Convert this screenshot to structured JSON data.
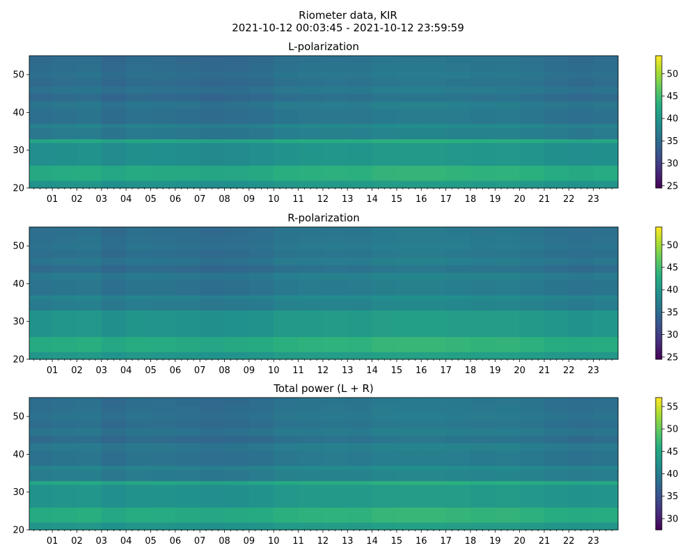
{
  "figure": {
    "title_line1": "Riometer data, KIR",
    "title_line2": "2021-10-12 00:03:45 - 2021-10-12 23:59:59"
  },
  "chart_data": [
    {
      "type": "heatmap",
      "title": "L-polarization",
      "colormap": "viridis",
      "x_range_hours": [
        0.0625,
        24.0
      ],
      "x_tick_labels": [
        "01",
        "02",
        "03",
        "04",
        "05",
        "06",
        "07",
        "08",
        "09",
        "10",
        "11",
        "12",
        "13",
        "14",
        "15",
        "16",
        "17",
        "18",
        "19",
        "20",
        "21",
        "22",
        "23"
      ],
      "ylim": [
        20,
        55
      ],
      "y_ticks": [
        20,
        30,
        40,
        50
      ],
      "clim": [
        24.5,
        54
      ],
      "colorbar_ticks": [
        25,
        30,
        35,
        40,
        45,
        50
      ],
      "band_levels": [
        {
          "y_from": 20,
          "y_to": 22,
          "value": 40
        },
        {
          "y_from": 22,
          "y_to": 26,
          "value": 43
        },
        {
          "y_from": 26,
          "y_to": 32,
          "value": 39.5
        },
        {
          "y_from": 32,
          "y_to": 33,
          "value": 42.5
        },
        {
          "y_from": 33,
          "y_to": 36,
          "value": 37
        },
        {
          "y_from": 36,
          "y_to": 37,
          "value": 38
        },
        {
          "y_from": 37,
          "y_to": 41,
          "value": 36
        },
        {
          "y_from": 41,
          "y_to": 43,
          "value": 36.6
        },
        {
          "y_from": 43,
          "y_to": 45,
          "value": 35.2
        },
        {
          "y_from": 45,
          "y_to": 47,
          "value": 36.2
        },
        {
          "y_from": 47,
          "y_to": 49,
          "value": 35.4
        },
        {
          "y_from": 49,
          "y_to": 51,
          "value": 36
        },
        {
          "y_from": 51,
          "y_to": 53,
          "value": 35.6
        },
        {
          "y_from": 53,
          "y_to": 55,
          "value": 35.4
        }
      ],
      "hour_offsets": [
        -0.5,
        -0.2,
        0.0,
        -0.9,
        -0.3,
        -0.4,
        -0.6,
        -1.0,
        -0.8,
        -0.5,
        0.2,
        0.4,
        0.5,
        0.4,
        0.9,
        1.0,
        1.0,
        0.8,
        0.6,
        0.7,
        0.3,
        -0.2,
        -0.5,
        -0.2
      ]
    },
    {
      "type": "heatmap",
      "title": "R-polarization",
      "colormap": "viridis",
      "x_range_hours": [
        0.0625,
        24.0
      ],
      "x_tick_labels": [
        "01",
        "02",
        "03",
        "04",
        "05",
        "06",
        "07",
        "08",
        "09",
        "10",
        "11",
        "12",
        "13",
        "14",
        "15",
        "16",
        "17",
        "18",
        "19",
        "20",
        "21",
        "22",
        "23"
      ],
      "ylim": [
        20,
        55
      ],
      "y_ticks": [
        20,
        30,
        40,
        50
      ],
      "clim": [
        24.5,
        54
      ],
      "colorbar_ticks": [
        25,
        30,
        35,
        40,
        45,
        50
      ],
      "band_levels": [
        {
          "y_from": 20,
          "y_to": 22,
          "value": 40.5
        },
        {
          "y_from": 22,
          "y_to": 26,
          "value": 43.2
        },
        {
          "y_from": 26,
          "y_to": 33,
          "value": 40.2
        },
        {
          "y_from": 33,
          "y_to": 36,
          "value": 37.4
        },
        {
          "y_from": 36,
          "y_to": 37,
          "value": 38.2
        },
        {
          "y_from": 37,
          "y_to": 41,
          "value": 36.4
        },
        {
          "y_from": 41,
          "y_to": 43,
          "value": 37
        },
        {
          "y_from": 43,
          "y_to": 45,
          "value": 35.4
        },
        {
          "y_from": 45,
          "y_to": 47,
          "value": 36.6
        },
        {
          "y_from": 47,
          "y_to": 49,
          "value": 35.8
        },
        {
          "y_from": 49,
          "y_to": 51,
          "value": 36.3
        },
        {
          "y_from": 51,
          "y_to": 53,
          "value": 36
        },
        {
          "y_from": 53,
          "y_to": 55,
          "value": 35.8
        }
      ],
      "hour_offsets": [
        -0.5,
        -0.2,
        0.0,
        -0.9,
        -0.3,
        -0.4,
        -0.6,
        -1.0,
        -0.8,
        -0.5,
        0.2,
        0.4,
        0.5,
        0.4,
        0.9,
        1.0,
        1.0,
        0.8,
        0.6,
        0.7,
        0.3,
        -0.2,
        -0.5,
        -0.2
      ]
    },
    {
      "type": "heatmap",
      "title": "Total power (L + R)",
      "colormap": "viridis",
      "x_range_hours": [
        0.0625,
        24.0
      ],
      "x_tick_labels": [
        "01",
        "02",
        "03",
        "04",
        "05",
        "06",
        "07",
        "08",
        "09",
        "10",
        "11",
        "12",
        "13",
        "14",
        "15",
        "16",
        "17",
        "18",
        "19",
        "20",
        "21",
        "22",
        "23"
      ],
      "ylim": [
        20,
        55
      ],
      "y_ticks": [
        20,
        30,
        40,
        50
      ],
      "clim": [
        27.5,
        57
      ],
      "colorbar_ticks": [
        30,
        35,
        40,
        45,
        50,
        55
      ],
      "band_levels": [
        {
          "y_from": 20,
          "y_to": 22,
          "value": 43.3
        },
        {
          "y_from": 22,
          "y_to": 26,
          "value": 46.2
        },
        {
          "y_from": 26,
          "y_to": 32,
          "value": 43
        },
        {
          "y_from": 32,
          "y_to": 33,
          "value": 45.5
        },
        {
          "y_from": 33,
          "y_to": 36,
          "value": 40.3
        },
        {
          "y_from": 36,
          "y_to": 37,
          "value": 41.2
        },
        {
          "y_from": 37,
          "y_to": 41,
          "value": 39.3
        },
        {
          "y_from": 41,
          "y_to": 43,
          "value": 39.9
        },
        {
          "y_from": 43,
          "y_to": 45,
          "value": 38.4
        },
        {
          "y_from": 45,
          "y_to": 47,
          "value": 39.5
        },
        {
          "y_from": 47,
          "y_to": 49,
          "value": 38.7
        },
        {
          "y_from": 49,
          "y_to": 51,
          "value": 39.2
        },
        {
          "y_from": 51,
          "y_to": 53,
          "value": 38.9
        },
        {
          "y_from": 53,
          "y_to": 55,
          "value": 38.7
        }
      ],
      "hour_offsets": [
        -0.5,
        -0.2,
        0.0,
        -0.9,
        -0.3,
        -0.4,
        -0.6,
        -1.0,
        -0.8,
        -0.5,
        0.2,
        0.4,
        0.5,
        0.4,
        0.9,
        1.0,
        1.0,
        0.8,
        0.6,
        0.7,
        0.3,
        -0.2,
        -0.5,
        -0.2
      ]
    }
  ]
}
